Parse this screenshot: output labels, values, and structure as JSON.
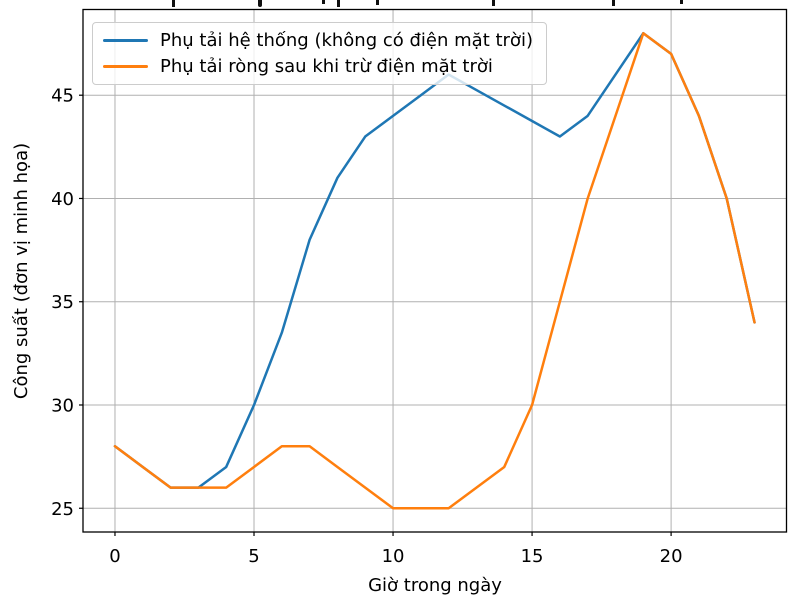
{
  "chart_data": {
    "type": "line",
    "xlabel": "Giờ trong ngày",
    "ylabel": "Công suất (đơn vị minh họa)",
    "x": [
      0,
      1,
      2,
      3,
      4,
      5,
      6,
      7,
      8,
      9,
      10,
      11,
      12,
      13,
      14,
      15,
      16,
      17,
      18,
      19,
      20,
      21,
      22,
      23
    ],
    "series": [
      {
        "name": "Phụ tải hệ thống (không có điện mặt trời)",
        "color": "#1f77b4",
        "values": [
          28,
          27,
          26,
          26,
          27,
          30,
          33.5,
          38,
          41,
          43,
          44,
          45,
          46,
          45.25,
          44.5,
          43.75,
          43,
          44,
          46,
          48,
          47,
          44,
          40,
          34
        ]
      },
      {
        "name": "Phụ tải ròng sau khi trừ điện mặt trời",
        "color": "#ff7f0e",
        "values": [
          28,
          27,
          26,
          26,
          26,
          27,
          28,
          28,
          27,
          26,
          25,
          25,
          25,
          26,
          27,
          30,
          35,
          40,
          44,
          48,
          47,
          44,
          40,
          34
        ]
      }
    ],
    "xticks": [
      0,
      5,
      10,
      15,
      20
    ],
    "yticks": [
      25,
      30,
      35,
      40,
      45
    ],
    "xlim": [
      -1.15,
      24.15
    ],
    "ylim": [
      23.85,
      49.15
    ],
    "grid": true,
    "grid_color": "#b0b0b0",
    "spine_color": "#000000",
    "line_width": 2.5,
    "legend_position": "upper-left"
  }
}
